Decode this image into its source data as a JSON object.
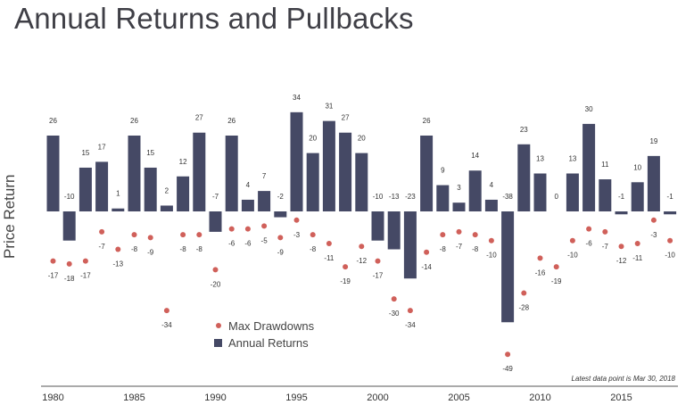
{
  "chart_data": {
    "type": "bar",
    "title": "Annual Returns and Pullbacks",
    "ylabel": "Price Return",
    "xlabel": "",
    "years": [
      1980,
      1981,
      1982,
      1983,
      1984,
      1985,
      1986,
      1987,
      1988,
      1989,
      1990,
      1991,
      1992,
      1993,
      1994,
      1995,
      1996,
      1997,
      1998,
      1999,
      2000,
      2001,
      2002,
      2003,
      2004,
      2005,
      2006,
      2007,
      2008,
      2009,
      2010,
      2011,
      2012,
      2013,
      2014,
      2015,
      2016,
      2017,
      2018
    ],
    "series": [
      {
        "name": "Annual Returns",
        "type": "bar",
        "color": "#454965",
        "values": [
          26,
          -10,
          15,
          17,
          1,
          26,
          15,
          2,
          12,
          27,
          -7,
          26,
          4,
          7,
          -2,
          34,
          20,
          31,
          27,
          20,
          -10,
          -13,
          -23,
          26,
          9,
          3,
          14,
          4,
          -38,
          23,
          13,
          0,
          13,
          30,
          11,
          -1,
          10,
          19,
          -1
        ]
      },
      {
        "name": "Max Drawdowns",
        "type": "scatter",
        "color": "#d0605a",
        "values": [
          -17,
          -18,
          -17,
          -7,
          -13,
          -8,
          -9,
          -34,
          -8,
          -8,
          -20,
          -6,
          -6,
          -5,
          -9,
          -3,
          -8,
          -11,
          -19,
          -12,
          -17,
          -30,
          -34,
          -14,
          -8,
          -7,
          -8,
          -10,
          -49,
          -28,
          -16,
          -19,
          -10,
          -6,
          -7,
          -12,
          -11,
          -3,
          -10
        ]
      }
    ],
    "xticks": [
      1980,
      1985,
      1990,
      1995,
      2000,
      2005,
      2010,
      2015
    ],
    "ylim": [
      -55,
      40
    ],
    "grid": false,
    "legend": "bottom-center",
    "annotation": "Latest data point is Mar 30, 2018"
  }
}
